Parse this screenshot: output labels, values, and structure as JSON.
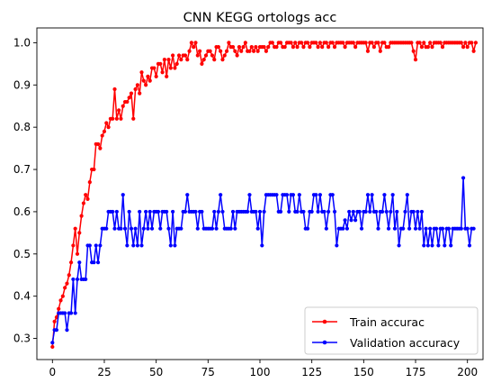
{
  "chart_data": {
    "type": "line",
    "title": "CNN KEGG ortologs acc",
    "xlabel": "",
    "ylabel": "",
    "xlim": [
      -7.5,
      207.5
    ],
    "ylim": [
      0.25,
      1.035
    ],
    "xticks": [
      0,
      25,
      50,
      75,
      100,
      125,
      150,
      175,
      200
    ],
    "yticks": [
      0.3,
      0.4,
      0.5,
      0.6,
      0.7,
      0.8,
      0.9,
      1.0
    ],
    "xtick_labels": [
      "0",
      "25",
      "50",
      "75",
      "100",
      "125",
      "150",
      "175",
      "200"
    ],
    "ytick_labels": [
      "0.3",
      "0.4",
      "0.5",
      "0.6",
      "0.7",
      "0.8",
      "0.9",
      "1.0"
    ],
    "grid": false,
    "legend_position": "lower-right",
    "series": [
      {
        "name": "Train accurac",
        "color": "#ff0000",
        "marker": "circle",
        "y": [
          0.28,
          0.34,
          0.35,
          0.37,
          0.39,
          0.4,
          0.42,
          0.43,
          0.45,
          0.48,
          0.52,
          0.56,
          0.5,
          0.55,
          0.59,
          0.62,
          0.64,
          0.63,
          0.67,
          0.7,
          0.7,
          0.76,
          0.76,
          0.75,
          0.78,
          0.79,
          0.81,
          0.8,
          0.82,
          0.82,
          0.89,
          0.82,
          0.84,
          0.82,
          0.85,
          0.86,
          0.86,
          0.87,
          0.88,
          0.82,
          0.89,
          0.9,
          0.88,
          0.93,
          0.91,
          0.9,
          0.92,
          0.91,
          0.94,
          0.94,
          0.92,
          0.95,
          0.95,
          0.93,
          0.96,
          0.92,
          0.96,
          0.94,
          0.97,
          0.94,
          0.95,
          0.97,
          0.96,
          0.97,
          0.97,
          0.96,
          0.98,
          1.0,
          0.99,
          1.0,
          0.97,
          0.98,
          0.95,
          0.96,
          0.97,
          0.98,
          0.98,
          0.97,
          0.96,
          0.99,
          0.99,
          0.98,
          0.96,
          0.97,
          0.98,
          1.0,
          0.99,
          0.99,
          0.98,
          0.97,
          0.99,
          0.98,
          0.99,
          1.0,
          0.98,
          0.98,
          0.99,
          0.98,
          0.99,
          0.98,
          0.99,
          0.99,
          0.99,
          0.98,
          0.99,
          1.0,
          1.0,
          0.99,
          0.99,
          1.0,
          1.0,
          0.99,
          0.99,
          1.0,
          1.0,
          1.0,
          0.99,
          1.0,
          0.99,
          1.0,
          1.0,
          0.99,
          1.0,
          1.0,
          0.99,
          1.0,
          1.0,
          1.0,
          0.99,
          1.0,
          0.99,
          1.0,
          1.0,
          0.99,
          1.0,
          1.0,
          0.99,
          1.0,
          1.0,
          1.0,
          1.0,
          0.99,
          1.0,
          1.0,
          1.0,
          1.0,
          0.99,
          1.0,
          1.0,
          1.0,
          1.0,
          1.0,
          0.98,
          1.0,
          1.0,
          0.99,
          1.0,
          1.0,
          0.98,
          1.0,
          1.0,
          0.99,
          0.99,
          1.0,
          1.0,
          1.0,
          1.0,
          1.0,
          1.0,
          1.0,
          1.0,
          1.0,
          1.0,
          1.0,
          0.98,
          0.96,
          1.0,
          1.0,
          0.99,
          1.0,
          0.99,
          0.99,
          1.0,
          0.99,
          1.0,
          1.0,
          1.0,
          1.0,
          0.99,
          1.0,
          1.0,
          1.0,
          1.0,
          1.0,
          1.0,
          1.0,
          1.0,
          1.0,
          0.99,
          1.0,
          0.99,
          1.0,
          1.0,
          0.98,
          1.0
        ]
      },
      {
        "name": "Validation accuracy",
        "color": "#0000ff",
        "marker": "circle",
        "y": [
          0.29,
          0.32,
          0.32,
          0.36,
          0.36,
          0.36,
          0.36,
          0.32,
          0.36,
          0.36,
          0.44,
          0.36,
          0.44,
          0.48,
          0.44,
          0.44,
          0.44,
          0.52,
          0.52,
          0.48,
          0.48,
          0.52,
          0.48,
          0.52,
          0.56,
          0.56,
          0.56,
          0.6,
          0.6,
          0.6,
          0.56,
          0.6,
          0.56,
          0.56,
          0.64,
          0.56,
          0.52,
          0.6,
          0.56,
          0.52,
          0.56,
          0.52,
          0.6,
          0.52,
          0.56,
          0.6,
          0.56,
          0.6,
          0.56,
          0.6,
          0.6,
          0.6,
          0.56,
          0.6,
          0.6,
          0.6,
          0.56,
          0.52,
          0.6,
          0.52,
          0.56,
          0.56,
          0.56,
          0.6,
          0.6,
          0.64,
          0.6,
          0.6,
          0.6,
          0.6,
          0.56,
          0.6,
          0.6,
          0.56,
          0.56,
          0.56,
          0.56,
          0.56,
          0.6,
          0.56,
          0.6,
          0.64,
          0.6,
          0.56,
          0.56,
          0.56,
          0.56,
          0.6,
          0.56,
          0.6,
          0.6,
          0.6,
          0.6,
          0.6,
          0.6,
          0.64,
          0.6,
          0.6,
          0.6,
          0.56,
          0.6,
          0.52,
          0.6,
          0.64,
          0.64,
          0.64,
          0.64,
          0.64,
          0.64,
          0.6,
          0.6,
          0.64,
          0.64,
          0.64,
          0.6,
          0.64,
          0.64,
          0.6,
          0.6,
          0.64,
          0.6,
          0.6,
          0.56,
          0.56,
          0.6,
          0.6,
          0.64,
          0.64,
          0.6,
          0.64,
          0.6,
          0.6,
          0.56,
          0.6,
          0.64,
          0.64,
          0.6,
          0.52,
          0.56,
          0.56,
          0.56,
          0.58,
          0.56,
          0.6,
          0.58,
          0.6,
          0.58,
          0.6,
          0.6,
          0.56,
          0.6,
          0.6,
          0.64,
          0.6,
          0.64,
          0.6,
          0.6,
          0.56,
          0.6,
          0.6,
          0.64,
          0.6,
          0.56,
          0.6,
          0.64,
          0.56,
          0.6,
          0.52,
          0.56,
          0.56,
          0.6,
          0.64,
          0.56,
          0.6,
          0.6,
          0.56,
          0.6,
          0.56,
          0.6,
          0.52,
          0.56,
          0.52,
          0.56,
          0.52,
          0.56,
          0.56,
          0.52,
          0.56,
          0.56,
          0.52,
          0.56,
          0.56,
          0.52,
          0.56,
          0.56,
          0.56,
          0.56,
          0.56,
          0.68,
          0.56,
          0.56,
          0.52,
          0.56,
          0.56
        ]
      }
    ]
  }
}
